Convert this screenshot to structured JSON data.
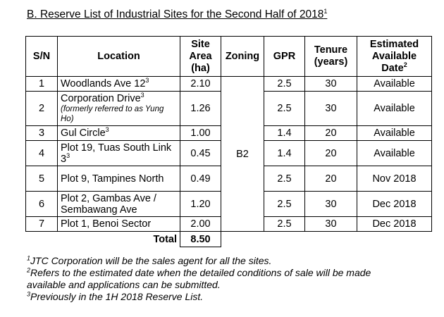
{
  "title": {
    "text": "B.  Reserve List of Industrial Sites for the Second Half of 2018",
    "sup": "1"
  },
  "headers": {
    "sn": "S/N",
    "location": "Location",
    "site_area": [
      "Site",
      "Area",
      "(ha)"
    ],
    "zoning": "Zoning",
    "gpr": "GPR",
    "tenure": [
      "Tenure",
      "(years)"
    ],
    "available": [
      "Estimated",
      "Available",
      "Date"
    ],
    "available_sup": "2"
  },
  "rows": [
    {
      "sn": "1",
      "location": "Woodlands Ave 12",
      "sup": "3",
      "sub": "",
      "area": "2.10",
      "gpr": "2.5",
      "tenure": "30",
      "date": "Available"
    },
    {
      "sn": "2",
      "location": "Corporation Drive",
      "sup": "3",
      "sub": "(formerly referred to as Yung Ho)",
      "area": "1.26",
      "gpr": "2.5",
      "tenure": "30",
      "date": "Available"
    },
    {
      "sn": "3",
      "location": "Gul Circle",
      "sup": "3",
      "sub": "",
      "area": "1.00",
      "gpr": "1.4",
      "tenure": "20",
      "date": "Available"
    },
    {
      "sn": "4",
      "location": "Plot 19, Tuas South Link 3",
      "sup": "3",
      "sub": "",
      "area": "0.45",
      "gpr": "1.4",
      "tenure": "20",
      "date": "Available"
    },
    {
      "sn": "5",
      "location": "Plot 9, Tampines North",
      "sup": "",
      "sub": "",
      "area": "0.49",
      "gpr": "2.5",
      "tenure": "20",
      "date": "Nov 2018"
    },
    {
      "sn": "6",
      "location": "Plot 2, Gambas Ave / Sembawang Ave",
      "sup": "",
      "sub": "",
      "area": "1.20",
      "gpr": "2.5",
      "tenure": "30",
      "date": "Dec 2018"
    },
    {
      "sn": "7",
      "location": "Plot 1, Benoi Sector",
      "sup": "",
      "sub": "",
      "area": "2.00",
      "gpr": "2.5",
      "tenure": "30",
      "date": "Dec 2018"
    }
  ],
  "zoning_all": "B2",
  "total": {
    "label": "Total",
    "value": "8.50"
  },
  "footnotes": [
    {
      "mark": "1",
      "text": "JTC Corporation will be the sales agent for all the sites."
    },
    {
      "mark": "2",
      "text": "Refers to the estimated date when the detailed conditions of sale will be made"
    },
    {
      "mark": "",
      "text": "available and applications can be submitted."
    },
    {
      "mark": "3",
      "text": "Previously in the 1H 2018 Reserve List."
    }
  ]
}
